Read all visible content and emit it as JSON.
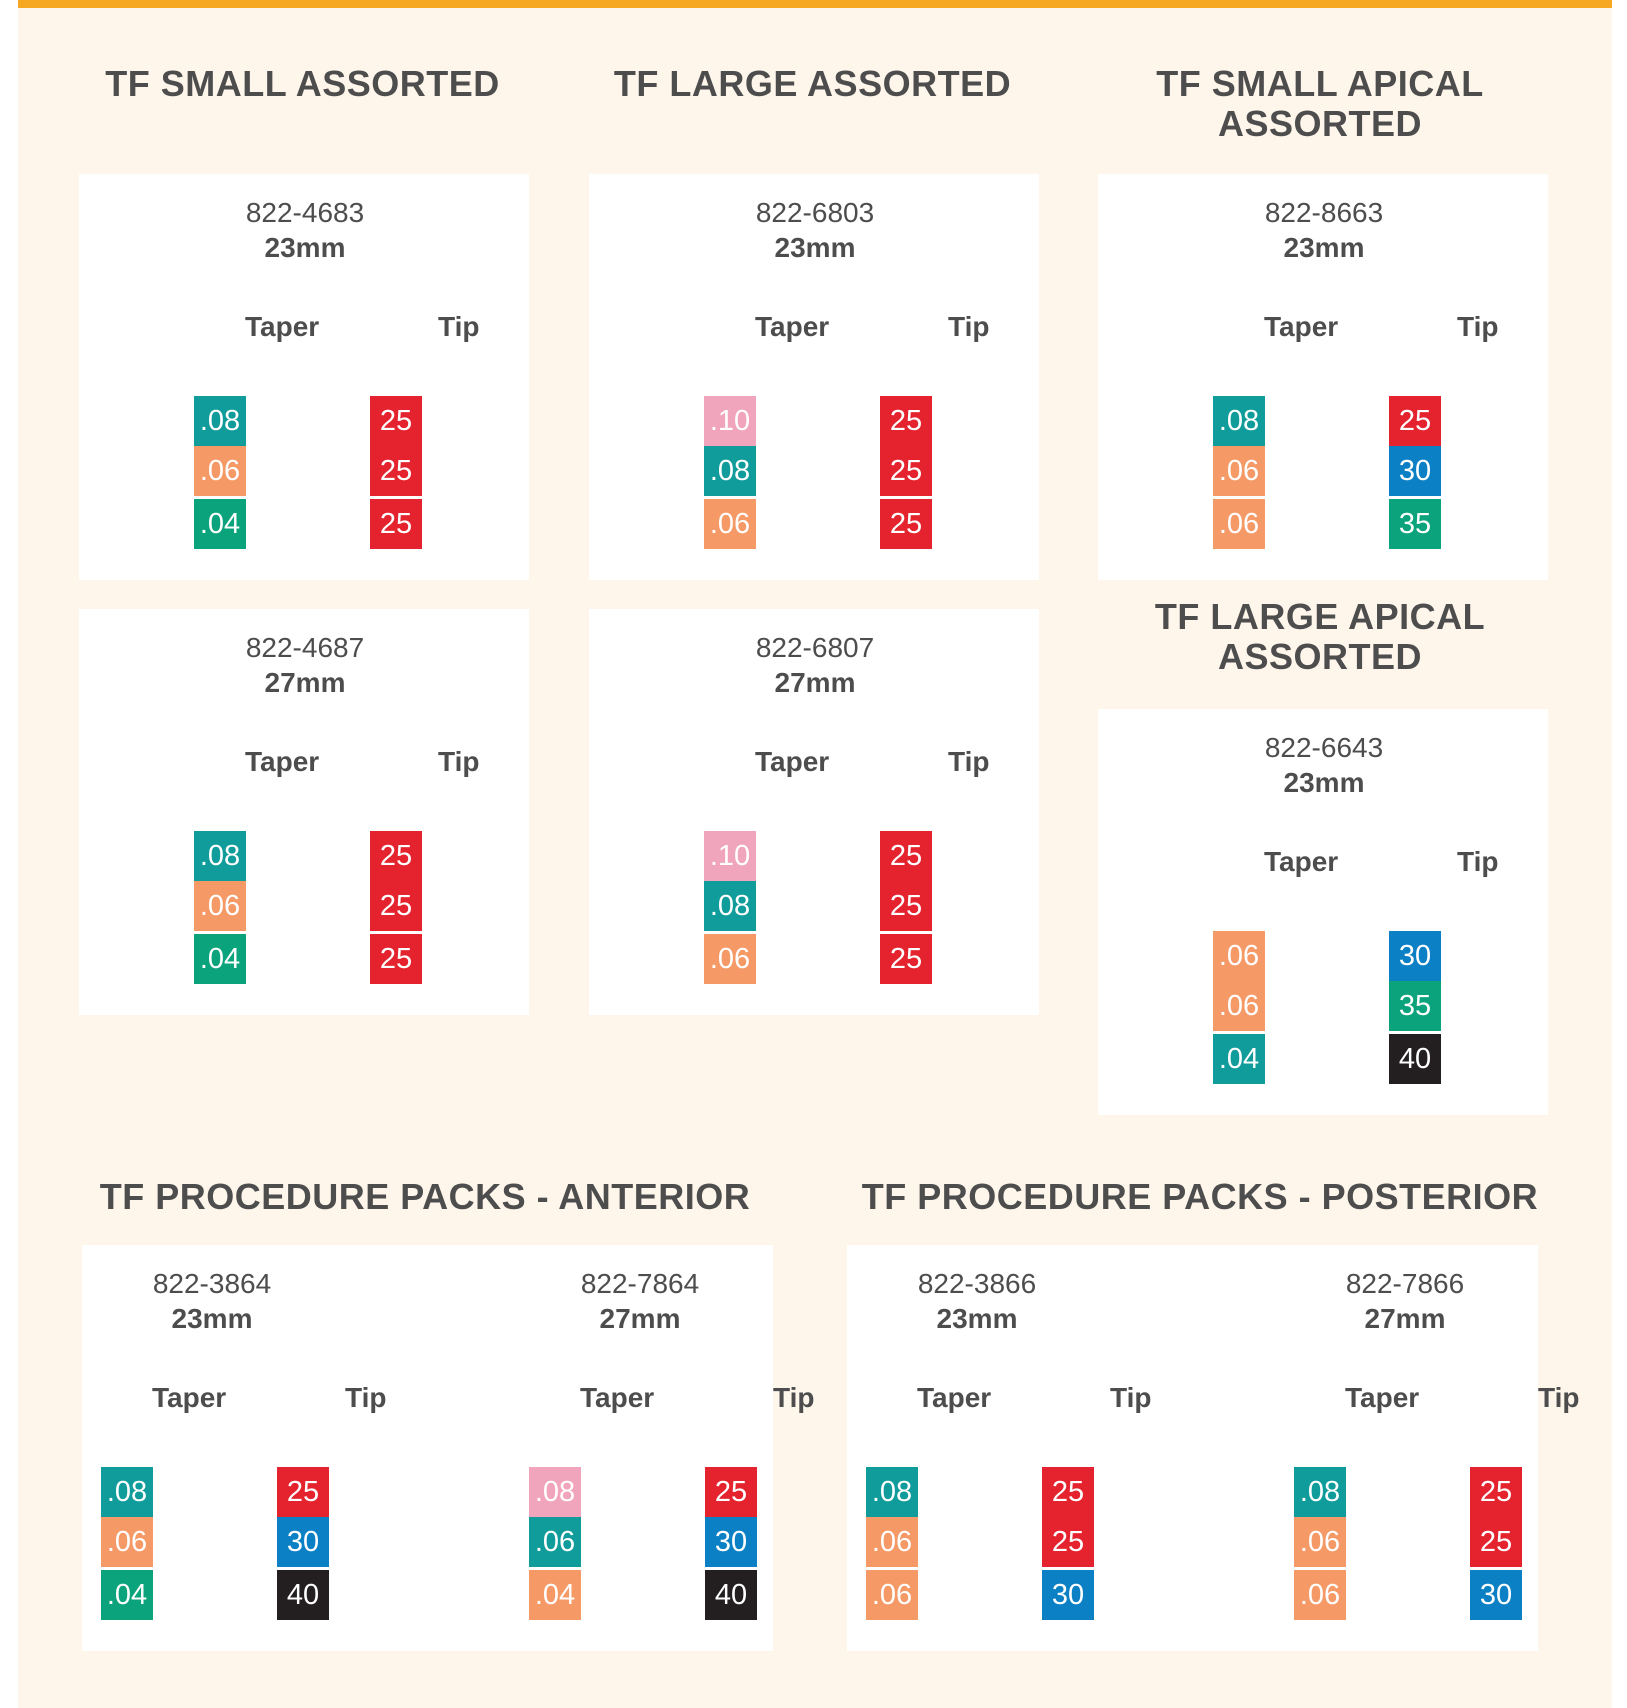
{
  "colors": {
    "top_bar": "#f7a823",
    "background": "#fef5eb",
    "card": "#ffffff",
    "text": "#4d4d4d",
    "pink": "#f1a5bc",
    "teal": "#0f9c9a",
    "orange": "#f59a66",
    "green": "#0aa37c",
    "red": "#e4232e",
    "blue": "#0b80c4",
    "black": "#231f20"
  },
  "sections": {
    "small_assorted": "TF SMALL ASSORTED",
    "large_assorted": "TF LARGE ASSORTED",
    "small_apical": "TF SMALL APICAL ASSORTED",
    "large_apical": "TF LARGE APICAL ASSORTED",
    "anterior": "TF PROCEDURE PACKS - ANTERIOR",
    "posterior": "TF PROCEDURE PACKS - POSTERIOR"
  },
  "labels": {
    "taper": "Taper",
    "tip": "Tip"
  },
  "kits": [
    {
      "code": "822-4683",
      "length": "23mm",
      "taper": [
        {
          "value": ".08",
          "color": "teal"
        },
        {
          "value": ".06",
          "color": "orange"
        },
        {
          "value": ".04",
          "color": "green"
        }
      ],
      "tip": [
        {
          "value": "25",
          "color": "red"
        },
        {
          "value": "25",
          "color": "red"
        },
        {
          "value": "25",
          "color": "red"
        }
      ]
    },
    {
      "code": "822-6803",
      "length": "23mm",
      "taper": [
        {
          "value": ".10",
          "color": "pink"
        },
        {
          "value": ".08",
          "color": "teal"
        },
        {
          "value": ".06",
          "color": "orange"
        }
      ],
      "tip": [
        {
          "value": "25",
          "color": "red"
        },
        {
          "value": "25",
          "color": "red"
        },
        {
          "value": "25",
          "color": "red"
        }
      ]
    },
    {
      "code": "822-8663",
      "length": "23mm",
      "taper": [
        {
          "value": ".08",
          "color": "teal"
        },
        {
          "value": ".06",
          "color": "orange"
        },
        {
          "value": ".06",
          "color": "orange"
        }
      ],
      "tip": [
        {
          "value": "25",
          "color": "red"
        },
        {
          "value": "30",
          "color": "blue"
        },
        {
          "value": "35",
          "color": "green"
        }
      ]
    },
    {
      "code": "822-4687",
      "length": "27mm",
      "taper": [
        {
          "value": ".08",
          "color": "teal"
        },
        {
          "value": ".06",
          "color": "orange"
        },
        {
          "value": ".04",
          "color": "green"
        }
      ],
      "tip": [
        {
          "value": "25",
          "color": "red"
        },
        {
          "value": "25",
          "color": "red"
        },
        {
          "value": "25",
          "color": "red"
        }
      ]
    },
    {
      "code": "822-6807",
      "length": "27mm",
      "taper": [
        {
          "value": ".10",
          "color": "pink"
        },
        {
          "value": ".08",
          "color": "teal"
        },
        {
          "value": ".06",
          "color": "orange"
        }
      ],
      "tip": [
        {
          "value": "25",
          "color": "red"
        },
        {
          "value": "25",
          "color": "red"
        },
        {
          "value": "25",
          "color": "red"
        }
      ]
    },
    {
      "code": "822-6643",
      "length": "23mm",
      "taper": [
        {
          "value": ".06",
          "color": "orange"
        },
        {
          "value": ".06",
          "color": "orange"
        },
        {
          "value": ".04",
          "color": "teal"
        }
      ],
      "tip": [
        {
          "value": "30",
          "color": "blue"
        },
        {
          "value": "35",
          "color": "green"
        },
        {
          "value": "40",
          "color": "black"
        }
      ]
    },
    {
      "code": "822-3864",
      "length": "23mm",
      "taper": [
        {
          "value": ".08",
          "color": "teal"
        },
        {
          "value": ".06",
          "color": "orange"
        },
        {
          "value": ".04",
          "color": "green"
        }
      ],
      "tip": [
        {
          "value": "25",
          "color": "red"
        },
        {
          "value": "30",
          "color": "blue"
        },
        {
          "value": "40",
          "color": "black"
        }
      ]
    },
    {
      "code": "822-7864",
      "length": "27mm",
      "taper": [
        {
          "value": ".08",
          "color": "pink"
        },
        {
          "value": ".06",
          "color": "teal"
        },
        {
          "value": ".04",
          "color": "orange"
        }
      ],
      "tip": [
        {
          "value": "25",
          "color": "red"
        },
        {
          "value": "30",
          "color": "blue"
        },
        {
          "value": "40",
          "color": "black"
        }
      ]
    },
    {
      "code": "822-3866",
      "length": "23mm",
      "taper": [
        {
          "value": ".08",
          "color": "teal"
        },
        {
          "value": ".06",
          "color": "orange"
        },
        {
          "value": ".06",
          "color": "orange"
        }
      ],
      "tip": [
        {
          "value": "25",
          "color": "red"
        },
        {
          "value": "25",
          "color": "red"
        },
        {
          "value": "30",
          "color": "blue"
        }
      ]
    },
    {
      "code": "822-7866",
      "length": "27mm",
      "taper": [
        {
          "value": ".08",
          "color": "teal"
        },
        {
          "value": ".06",
          "color": "orange"
        },
        {
          "value": ".06",
          "color": "orange"
        }
      ],
      "tip": [
        {
          "value": "25",
          "color": "red"
        },
        {
          "value": "25",
          "color": "red"
        },
        {
          "value": "30",
          "color": "blue"
        }
      ]
    }
  ]
}
